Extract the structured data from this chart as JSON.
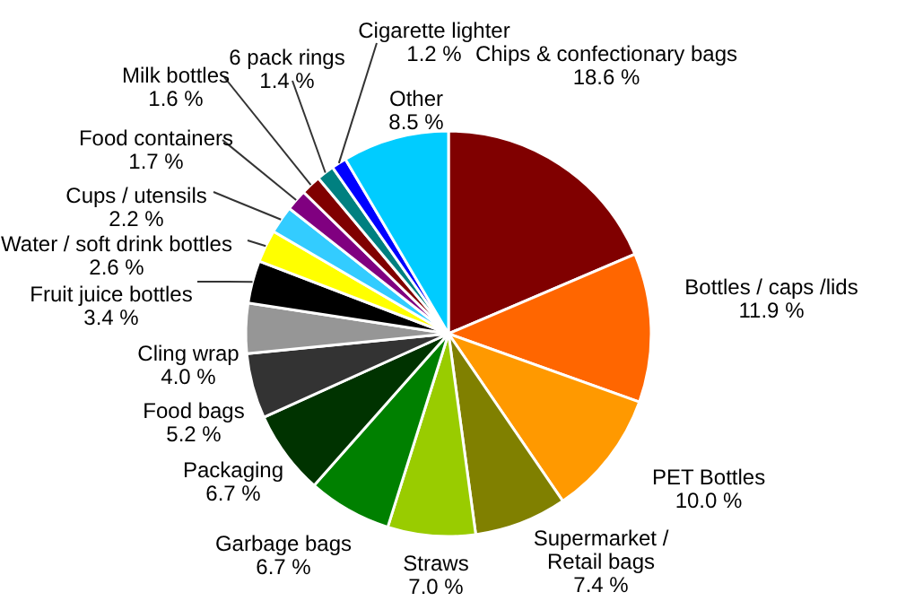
{
  "chart_data": {
    "type": "pie",
    "categories": [
      "Chips & confectionary bags",
      "Bottles / caps /lids",
      "PET Bottles",
      "Supermarket / Retail bags",
      "Straws",
      "Garbage bags",
      "Packaging",
      "Food bags",
      "Cling wrap",
      "Fruit juice bottles",
      "Water / soft drink bottles",
      "Cups / utensils",
      "Food containers",
      "Milk bottles",
      "6 pack rings",
      "Cigarette lighter",
      "Other"
    ],
    "values": [
      18.6,
      11.9,
      10.0,
      7.4,
      7.0,
      6.7,
      6.7,
      5.2,
      4.0,
      3.4,
      2.6,
      2.2,
      1.7,
      1.6,
      1.4,
      1.2,
      8.5
    ],
    "value_labels": [
      "18.6 %",
      "11.9 %",
      "10.0 %",
      "7.4 %",
      "7.0 %",
      "6.7 %",
      "6.7 %",
      "5.2 %",
      "4.0 %",
      "3.4 %",
      "2.6 %",
      "2.2 %",
      "1.7 %",
      "1.6 %",
      "1.4 %",
      "1.2 %",
      "8.5 %"
    ],
    "colors": [
      "#800000",
      "#ff6600",
      "#ff9900",
      "#808000",
      "#99cc00",
      "#008000",
      "#003300",
      "#333333",
      "#969696",
      "#000000",
      "#ffff00",
      "#33ccff",
      "#800080",
      "#800000",
      "#008080",
      "#0000ff",
      "#00ccff"
    ]
  }
}
